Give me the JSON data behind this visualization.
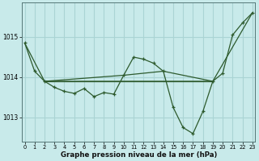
{
  "xlabel": "Graphe pression niveau de la mer (hPa)",
  "bg_color": "#c8eaea",
  "grid_color": "#aad4d4",
  "line_color": "#2d5a2d",
  "x_ticks": [
    0,
    1,
    2,
    3,
    4,
    5,
    6,
    7,
    8,
    9,
    10,
    11,
    12,
    13,
    14,
    15,
    16,
    17,
    18,
    19,
    20,
    21,
    22,
    23
  ],
  "y_ticks": [
    1013,
    1014,
    1015
  ],
  "ylim": [
    1012.4,
    1015.85
  ],
  "xlim": [
    -0.3,
    23.3
  ],
  "series1_x": [
    0,
    1,
    2,
    3,
    4,
    5,
    6,
    7,
    8,
    9,
    10,
    11,
    12,
    13,
    14,
    15,
    16,
    17,
    18,
    19,
    20,
    21,
    22,
    23
  ],
  "series1_y": [
    1014.85,
    1014.15,
    1013.9,
    1013.75,
    1013.65,
    1013.6,
    1013.72,
    1013.52,
    1013.62,
    1013.58,
    1014.05,
    1014.5,
    1014.45,
    1014.35,
    1014.15,
    1013.25,
    1012.75,
    1012.6,
    1013.15,
    1013.9,
    1014.1,
    1015.05,
    1015.35,
    1015.6
  ],
  "series2_x": [
    0,
    2,
    19,
    23
  ],
  "series2_y": [
    1014.85,
    1013.9,
    1013.9,
    1015.6
  ],
  "series3_x": [
    2,
    10,
    14,
    19
  ],
  "series3_y": [
    1013.9,
    1014.05,
    1014.15,
    1013.9
  ],
  "hline_x": [
    2,
    19
  ],
  "hline_y": [
    1013.9,
    1013.9
  ]
}
